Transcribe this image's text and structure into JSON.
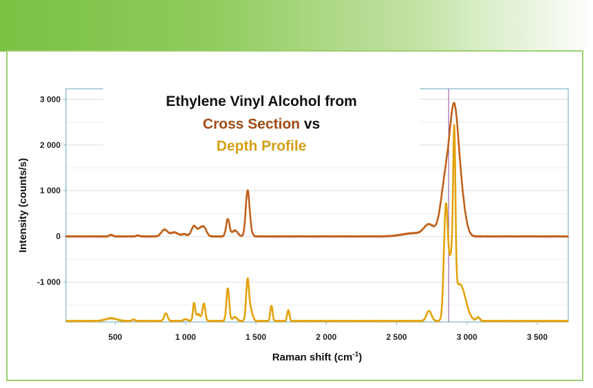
{
  "chart_data": {
    "type": "line",
    "title": {
      "line1": "Ethylene Vinyl Alcohol from",
      "line2a": "Cross Section",
      "line2b": " vs",
      "line3": "Depth Profile"
    },
    "xlabel": "Raman shift (cm",
    "xlabel_sup": "-1",
    "xlabel_end": ")",
    "ylabel": "Intensity (counts/s)",
    "xlim": [
      150,
      3720
    ],
    "ylim": [
      -1870,
      3230
    ],
    "xticks": [
      {
        "value": 500,
        "label": "500"
      },
      {
        "value": 1000,
        "label": "1 000"
      },
      {
        "value": 1500,
        "label": "1 500"
      },
      {
        "value": 2000,
        "label": "2 000"
      },
      {
        "value": 2500,
        "label": "2 500"
      },
      {
        "value": 3000,
        "label": "3 000"
      },
      {
        "value": 3500,
        "label": "3 500"
      }
    ],
    "yticks": [
      {
        "value": 3000,
        "label": "3 000"
      },
      {
        "value": 2000,
        "label": "2 000"
      },
      {
        "value": 1000,
        "label": "1 000"
      },
      {
        "value": 0,
        "label": "0"
      },
      {
        "value": -1000,
        "label": "-1 000"
      }
    ],
    "grid": true,
    "marker_line_x": 2870,
    "colors": {
      "cross_section": "#c0601a",
      "depth_profile": "#e3a20d",
      "title_dark": "#111111",
      "title_cross": "#a04a12",
      "title_depth": "#d4a017",
      "axis": "#7fb3c8",
      "grid": "#dddddd",
      "marker": "#8a4a9a"
    },
    "series": [
      {
        "key": "cross_section",
        "baseline": 0,
        "peaks": [
          [
            470,
            35,
            12
          ],
          [
            660,
            20,
            12
          ],
          [
            850,
            150,
            22
          ],
          [
            920,
            90,
            25
          ],
          [
            990,
            50,
            20
          ],
          [
            1060,
            230,
            18
          ],
          [
            1100,
            120,
            15
          ],
          [
            1130,
            200,
            18
          ],
          [
            1300,
            380,
            12
          ],
          [
            1350,
            130,
            20
          ],
          [
            1440,
            920,
            13
          ],
          [
            1455,
            150,
            15
          ],
          [
            2620,
            70,
            80
          ],
          [
            2730,
            240,
            35
          ],
          [
            2850,
            1250,
            35
          ],
          [
            2910,
            2450,
            30
          ],
          [
            2960,
            700,
            30
          ]
        ]
      },
      {
        "key": "depth_profile",
        "baseline": -1850,
        "peaks": [
          [
            470,
            60,
            40
          ],
          [
            630,
            35,
            10
          ],
          [
            860,
            170,
            12
          ],
          [
            1000,
            40,
            15
          ],
          [
            1060,
            380,
            8
          ],
          [
            1090,
            150,
            15
          ],
          [
            1130,
            380,
            10
          ],
          [
            1300,
            720,
            10
          ],
          [
            1350,
            90,
            15
          ],
          [
            1440,
            830,
            10
          ],
          [
            1460,
            250,
            15
          ],
          [
            1610,
            340,
            8
          ],
          [
            1730,
            240,
            8
          ],
          [
            2730,
            220,
            18
          ],
          [
            2850,
            2440,
            14
          ],
          [
            2890,
            1200,
            18
          ],
          [
            2910,
            3150,
            8
          ],
          [
            2950,
            800,
            40
          ],
          [
            3080,
            80,
            12
          ]
        ]
      }
    ]
  }
}
